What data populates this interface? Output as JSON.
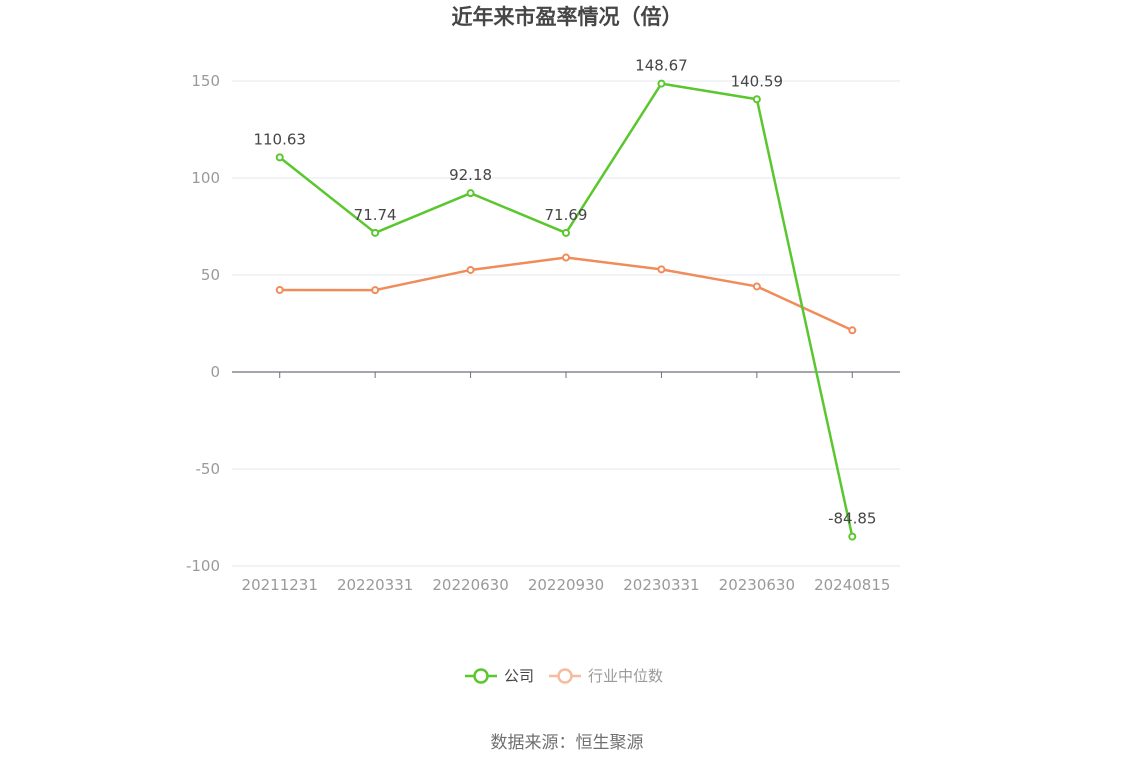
{
  "chart_data": {
    "type": "line",
    "title": "近年来市盈率情况（倍）",
    "categories": [
      "20211231",
      "20220331",
      "20220630",
      "20220930",
      "20230331",
      "20230630",
      "20240815"
    ],
    "series": [
      {
        "name": "公司",
        "values": [
          110.63,
          71.74,
          92.18,
          71.69,
          148.67,
          140.59,
          -84.85
        ],
        "labels": [
          "110.63",
          "71.74",
          "92.18",
          "71.69",
          "148.67",
          "140.59",
          "-84.85"
        ],
        "color": "#5ac72e"
      },
      {
        "name": "行业中位数",
        "values": [
          42.3,
          42.2,
          52.6,
          59.0,
          52.9,
          44.1,
          21.5
        ],
        "color": "#f08c5a",
        "legend_color": "#f7bba0"
      }
    ],
    "y_ticks": [
      "150",
      "100",
      "50",
      "0",
      "-50",
      "-100"
    ],
    "y_tick_values": [
      150,
      100,
      50,
      0,
      -50,
      -100
    ],
    "ylim": [
      -100,
      150
    ],
    "grid": true,
    "legend_position": "bottom-center",
    "colors": {
      "grid": "#e4e7ee",
      "axis": "#6e7079",
      "tick_label": "#9a9a9a",
      "legend_inactive_text": "#9a9a9a",
      "legend_active_text": "#464646"
    }
  },
  "source": "数据来源：恒生聚源"
}
